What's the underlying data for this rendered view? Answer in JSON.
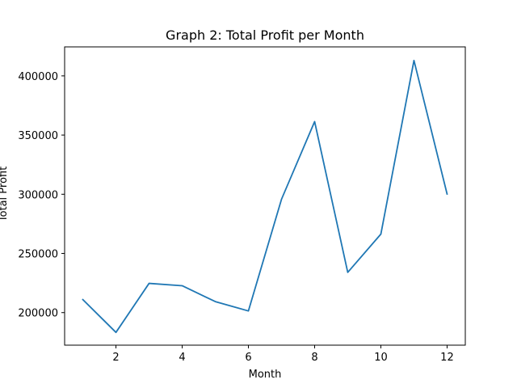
{
  "chart_data": {
    "type": "line",
    "title": "Graph 2: Total Profit per Month",
    "xlabel": "Month",
    "ylabel": "Total Profit",
    "xlim": [
      0.45,
      12.55
    ],
    "ylim": [
      172500,
      424500
    ],
    "x_ticks": [
      2,
      4,
      6,
      8,
      10,
      12
    ],
    "y_ticks": [
      200000,
      250000,
      300000,
      350000,
      400000
    ],
    "grid": false,
    "series": [
      {
        "color": "#1f77b4",
        "x": [
          1,
          2,
          3,
          4,
          5,
          6,
          7,
          8,
          9,
          10,
          11,
          12
        ],
        "y": [
          211000,
          183300,
          224700,
          222700,
          209300,
          201400,
          295800,
          361400,
          234000,
          266300,
          413000,
          300200
        ]
      }
    ]
  }
}
